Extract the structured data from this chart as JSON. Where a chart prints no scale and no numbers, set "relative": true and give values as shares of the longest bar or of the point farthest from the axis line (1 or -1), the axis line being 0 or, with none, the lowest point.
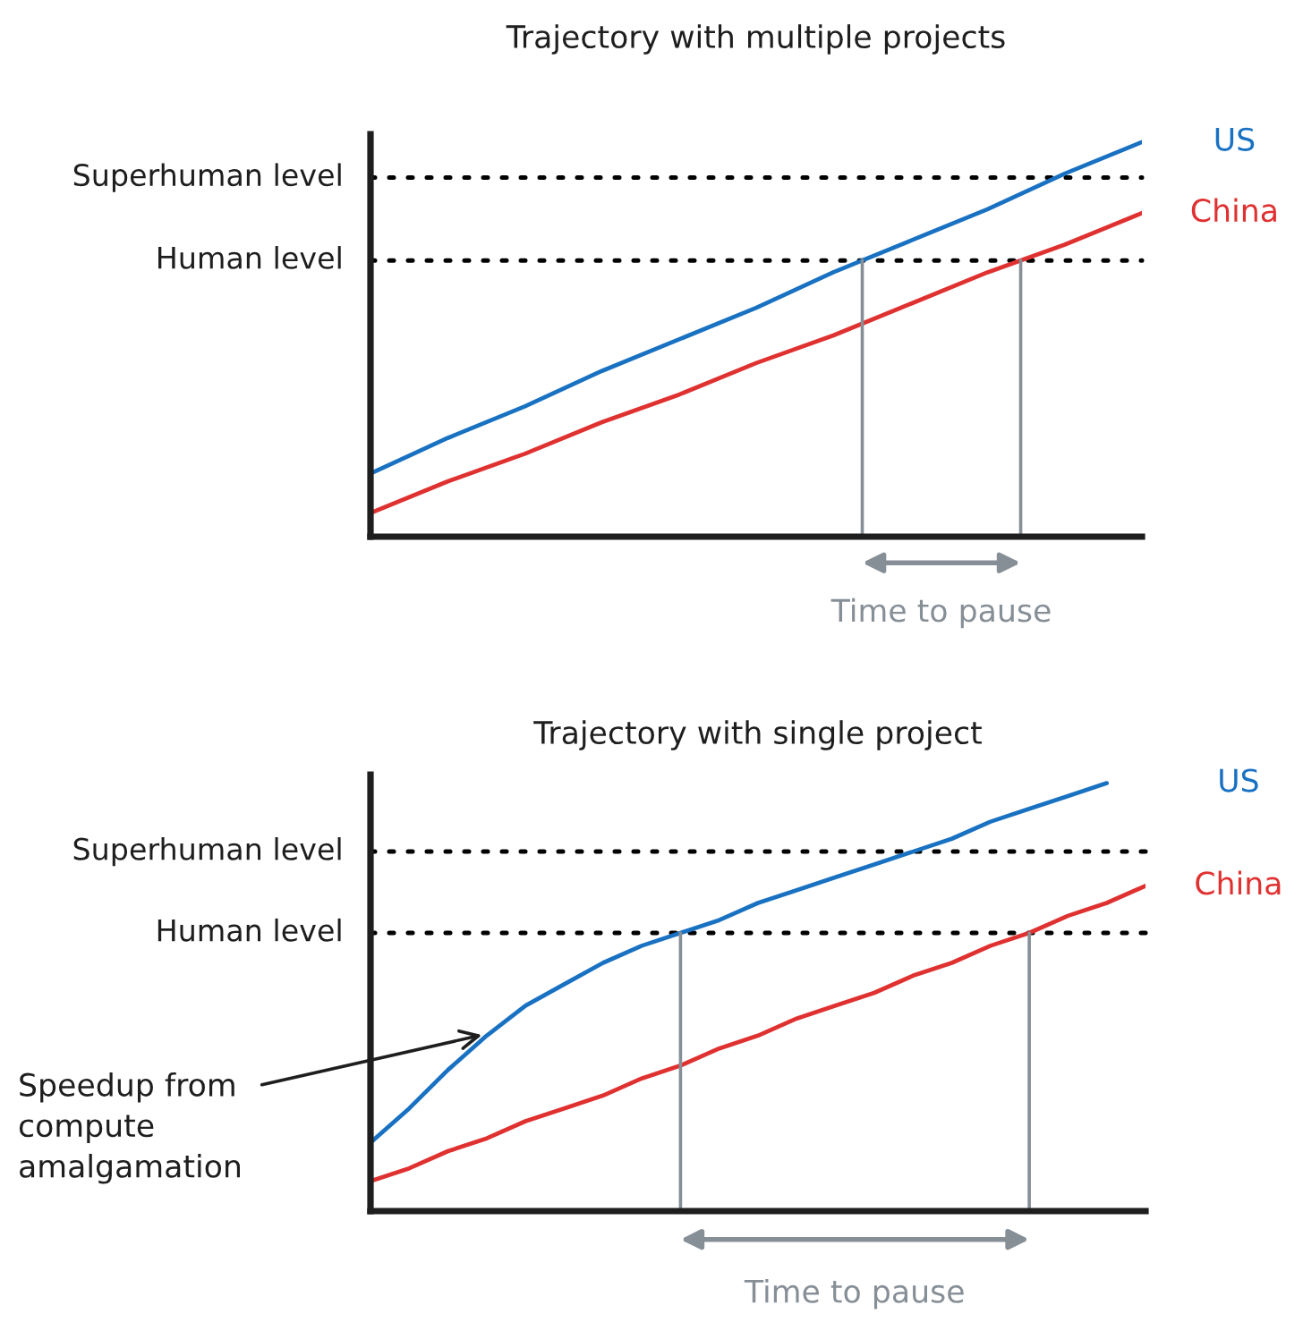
{
  "chart_data": [
    {
      "type": "line",
      "title": "Trajectory with multiple projects",
      "relative": true,
      "categories": [
        null,
        null,
        null,
        null,
        null,
        null,
        null,
        null,
        null,
        null,
        null
      ],
      "series": [
        {
          "name": "US",
          "color": "#1971c2",
          "values": [
            0.16,
            0.25,
            0.33,
            0.42,
            0.5,
            0.58,
            0.67,
            0.75,
            0.83,
            0.92,
            1.0
          ]
        },
        {
          "name": "China",
          "color": "#e03131",
          "values": [
            0.06,
            0.14,
            0.21,
            0.29,
            0.36,
            0.44,
            0.51,
            0.59,
            0.67,
            0.74,
            0.82
          ]
        }
      ],
      "ref_lines": [
        {
          "axis": "y",
          "value": 0.91,
          "label": "Superhuman level",
          "color": "#000000",
          "line_style": "dotted"
        },
        {
          "axis": "y",
          "value": 0.7,
          "label": "Human level",
          "color": "#000000",
          "line_style": "dotted"
        }
      ],
      "annotations": [
        "Time to pause"
      ]
    },
    {
      "type": "line",
      "title": "Trajectory with single project",
      "relative": true,
      "categories": [
        null,
        null,
        null,
        null,
        null,
        null,
        null,
        null,
        null,
        null,
        null,
        null,
        null,
        null,
        null,
        null,
        null,
        null,
        null,
        null,
        null
      ],
      "series": [
        {
          "name": "US",
          "color": "#1971c2",
          "values": [
            0.16,
            0.24,
            0.33,
            0.41,
            0.48,
            0.53,
            0.58,
            0.62,
            0.65,
            0.68,
            0.72,
            0.75,
            0.78,
            0.81,
            0.84,
            0.87,
            0.91,
            0.94,
            0.97,
            1.0,
            null
          ]
        },
        {
          "name": "China",
          "color": "#e03131",
          "values": [
            0.07,
            0.1,
            0.14,
            0.17,
            0.21,
            0.24,
            0.27,
            0.31,
            0.34,
            0.38,
            0.41,
            0.45,
            0.48,
            0.51,
            0.55,
            0.58,
            0.62,
            0.65,
            0.69,
            0.72,
            0.76
          ]
        }
      ],
      "ref_lines": [
        {
          "axis": "y",
          "value": 0.84,
          "label": "Superhuman level",
          "color": "#000000",
          "line_style": "dotted"
        },
        {
          "axis": "y",
          "value": 0.65,
          "label": "Human level",
          "color": "#000000",
          "line_style": "dotted"
        }
      ],
      "annotations": [
        "Speedup from\ncompute\namalgamation",
        "Time to pause"
      ]
    }
  ]
}
